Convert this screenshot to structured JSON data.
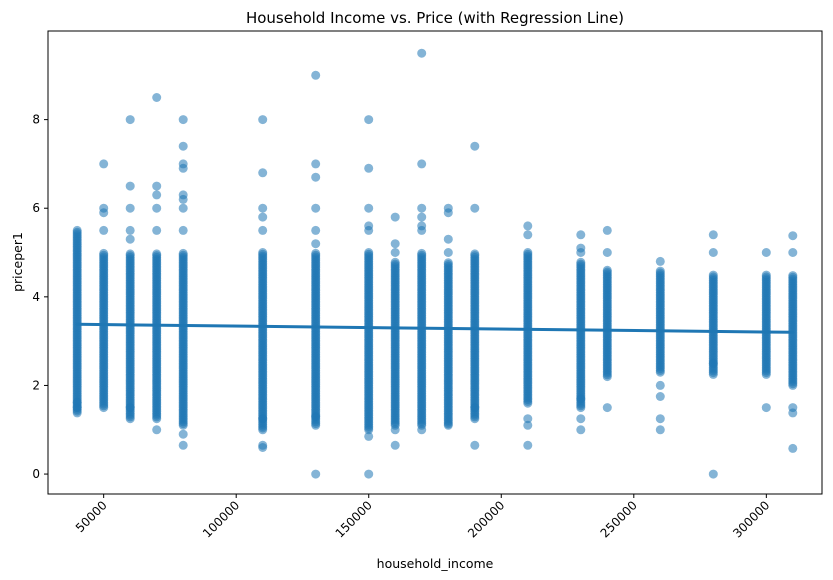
{
  "chart_data": {
    "type": "scatter",
    "title": "Household Income vs. Price (with Regression Line)",
    "xlabel": "household_income",
    "ylabel": "priceper1",
    "xlim": [
      29000,
      321000
    ],
    "ylim": [
      -0.45,
      10
    ],
    "xticks": [
      50000,
      100000,
      150000,
      200000,
      250000,
      300000
    ],
    "xtick_labels": [
      "50000",
      "100000",
      "150000",
      "200000",
      "250000",
      "300000"
    ],
    "xtick_rotation": 45,
    "yticks": [
      0,
      2,
      4,
      6,
      8
    ],
    "ytick_labels": [
      "0",
      "2",
      "4",
      "6",
      "8"
    ],
    "grid": false,
    "point_color": "#1f77b4",
    "line_color": "#1f77b4",
    "regression_line": {
      "x": [
        40000,
        310000
      ],
      "y": [
        3.38,
        3.2
      ]
    },
    "columns": [
      {
        "x": 40000,
        "min": 1.38,
        "max": 5.5,
        "outliers": [
          1.5,
          1.62
        ]
      },
      {
        "x": 50000,
        "min": 1.5,
        "max": 5.0,
        "outliers": [
          5.5,
          5.9,
          6.0,
          7.0
        ]
      },
      {
        "x": 60000,
        "min": 1.25,
        "max": 5.0,
        "outliers": [
          1.5,
          5.3,
          5.5,
          6.0,
          6.5,
          8.0
        ]
      },
      {
        "x": 70000,
        "min": 1.25,
        "max": 5.0,
        "outliers": [
          1.0,
          5.5,
          6.0,
          6.3,
          6.5,
          8.5
        ]
      },
      {
        "x": 80000,
        "min": 1.1,
        "max": 5.0,
        "outliers": [
          0.65,
          0.9,
          5.5,
          6.0,
          6.2,
          6.3,
          6.9,
          7.0,
          7.4,
          8.0
        ]
      },
      {
        "x": 110000,
        "min": 1.0,
        "max": 5.0,
        "outliers": [
          0.6,
          0.65,
          1.25,
          5.5,
          5.8,
          6.0,
          6.8,
          8.0
        ]
      },
      {
        "x": 130000,
        "min": 1.1,
        "max": 5.0,
        "outliers": [
          0.0,
          1.3,
          5.2,
          5.5,
          6.0,
          6.7,
          7.0,
          9.0
        ]
      },
      {
        "x": 150000,
        "min": 1.0,
        "max": 5.0,
        "outliers": [
          0.0,
          0.85,
          5.5,
          5.6,
          6.0,
          6.9,
          8.0
        ]
      },
      {
        "x": 160000,
        "min": 1.1,
        "max": 4.8,
        "outliers": [
          0.65,
          1.0,
          5.0,
          5.2,
          5.8
        ]
      },
      {
        "x": 170000,
        "min": 1.1,
        "max": 5.0,
        "outliers": [
          1.0,
          5.5,
          5.6,
          5.8,
          6.0,
          7.0,
          9.5
        ]
      },
      {
        "x": 180000,
        "min": 1.13,
        "max": 4.8,
        "outliers": [
          1.1,
          5.0,
          5.3,
          5.9,
          6.0
        ]
      },
      {
        "x": 190000,
        "min": 1.25,
        "max": 5.0,
        "outliers": [
          0.65,
          1.5,
          6.0,
          7.4
        ]
      },
      {
        "x": 210000,
        "min": 1.6,
        "max": 5.0,
        "outliers": [
          0.65,
          1.1,
          1.25,
          5.4,
          5.6
        ]
      },
      {
        "x": 230000,
        "min": 1.5,
        "max": 4.8,
        "outliers": [
          1.0,
          1.25,
          1.7,
          5.0,
          5.1,
          5.4
        ]
      },
      {
        "x": 240000,
        "min": 2.2,
        "max": 4.6,
        "outliers": [
          1.5,
          5.0,
          5.5
        ]
      },
      {
        "x": 260000,
        "min": 2.3,
        "max": 4.6,
        "outliers": [
          1.0,
          1.25,
          1.75,
          2.0,
          4.8
        ]
      },
      {
        "x": 280000,
        "min": 2.25,
        "max": 4.5,
        "outliers": [
          0.0,
          2.5,
          5.0,
          5.4
        ]
      },
      {
        "x": 300000,
        "min": 2.25,
        "max": 4.5,
        "outliers": [
          1.5,
          5.0
        ]
      },
      {
        "x": 310000,
        "min": 2.0,
        "max": 4.5,
        "outliers": [
          0.58,
          1.38,
          1.5,
          5.0,
          5.38
        ]
      }
    ]
  }
}
